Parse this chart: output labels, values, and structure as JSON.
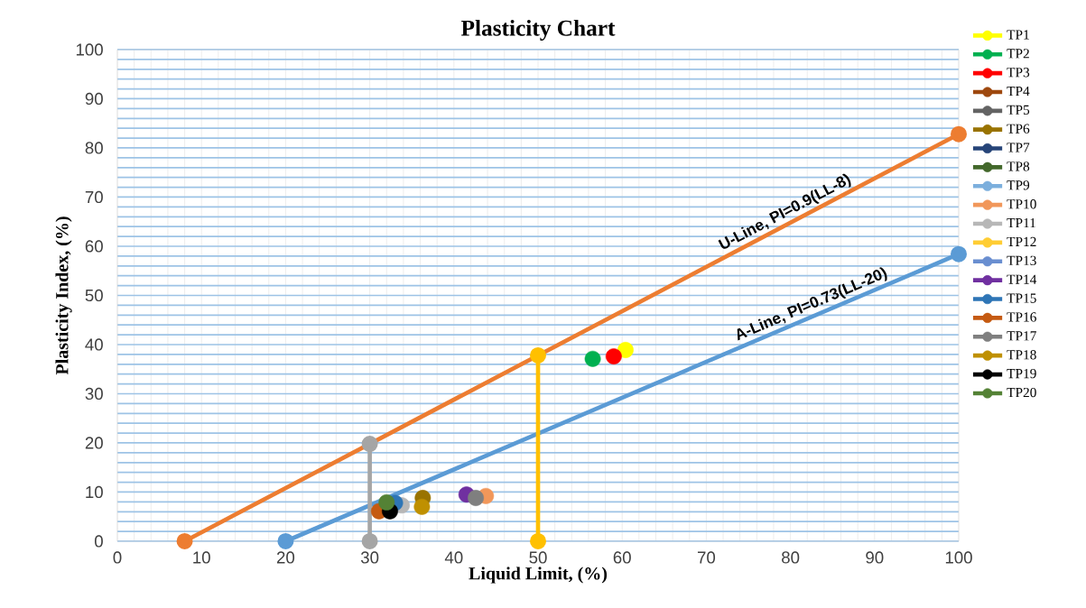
{
  "chart_data": {
    "type": "scatter",
    "title": "Plasticity Chart",
    "xlabel": "Liquid Limit, (%)",
    "ylabel": "Plasticity Index, (%)",
    "xlim": [
      0,
      100
    ],
    "ylim": [
      0,
      100
    ],
    "xticks": [
      0,
      10,
      20,
      30,
      40,
      50,
      60,
      70,
      80,
      90,
      100
    ],
    "yticks": [
      0,
      10,
      20,
      30,
      40,
      50,
      60,
      70,
      80,
      90,
      100
    ],
    "grid": true,
    "legend": "right",
    "marker": "circle",
    "annotations": [
      {
        "text": "U-Line,      PI=0.9(LL-8)",
        "x": 80,
        "y": 64.8
      },
      {
        "text": "A-Line,  PI=0.73(LL-20)",
        "x": 83,
        "y": 46
      }
    ],
    "series": [
      {
        "name": "TP1",
        "color": "#ffff00",
        "x": [
          60.4
        ],
        "values": [
          38.9
        ]
      },
      {
        "name": "TP2",
        "color": "#00b050",
        "x": [
          56.5
        ],
        "values": [
          37.1
        ]
      },
      {
        "name": "TP3",
        "color": "#ff0000",
        "x": [
          59.0
        ],
        "values": [
          37.6
        ]
      },
      {
        "name": "TP4",
        "color": "#9e480e",
        "x": [
          null
        ],
        "values": [
          null
        ]
      },
      {
        "name": "TP5",
        "color": "#636363",
        "x": [
          null
        ],
        "values": [
          null
        ]
      },
      {
        "name": "TP6",
        "color": "#997300",
        "x": [
          36.3
        ],
        "values": [
          8.8
        ]
      },
      {
        "name": "TP7",
        "color": "#264478",
        "x": [
          null
        ],
        "values": [
          null
        ]
      },
      {
        "name": "TP8",
        "color": "#43682b",
        "x": [
          null
        ],
        "values": [
          null
        ]
      },
      {
        "name": "TP9",
        "color": "#7cafdd",
        "x": [
          null
        ],
        "values": [
          null
        ]
      },
      {
        "name": "TP10",
        "color": "#f1975a",
        "x": [
          43.8
        ],
        "values": [
          9.2
        ]
      },
      {
        "name": "TP11",
        "color": "#b7b7b7",
        "x": [
          33.8
        ],
        "values": [
          7.3
        ]
      },
      {
        "name": "TP12",
        "color": "#ffcd33",
        "x": [
          null
        ],
        "values": [
          null
        ]
      },
      {
        "name": "TP13",
        "color": "#698ed0",
        "x": [
          null
        ],
        "values": [
          null
        ]
      },
      {
        "name": "TP14",
        "color": "#7030a0",
        "x": [
          41.5
        ],
        "values": [
          9.5
        ]
      },
      {
        "name": "TP15",
        "color": "#2e75b6",
        "x": [
          33.0
        ],
        "values": [
          7.8
        ]
      },
      {
        "name": "TP16",
        "color": "#c55a11",
        "x": [
          31.1
        ],
        "values": [
          6.1
        ]
      },
      {
        "name": "TP17",
        "color": "#7f7f7f",
        "x": [
          42.6
        ],
        "values": [
          8.8
        ]
      },
      {
        "name": "TP18",
        "color": "#bf9000",
        "x": [
          36.2
        ],
        "values": [
          7.0
        ]
      },
      {
        "name": "TP19",
        "color": "#000000",
        "x": [
          32.4
        ],
        "values": [
          6.1
        ]
      },
      {
        "name": "TP20",
        "color": "#548235",
        "x": [
          32.0
        ],
        "values": [
          7.9
        ]
      },
      {
        "type": "line",
        "color": "#ed7d31",
        "x": [
          8,
          100
        ],
        "values": [
          0,
          82.8
        ]
      },
      {
        "type": "line",
        "color": "#5b9bd5",
        "x": [
          20,
          100
        ],
        "values": [
          0,
          58.4
        ]
      },
      {
        "type": "line",
        "color": "#a5a5a5",
        "x": [
          30,
          30
        ],
        "values": [
          0,
          19.8
        ]
      },
      {
        "type": "line",
        "color": "#ffc000",
        "x": [
          50,
          50
        ],
        "values": [
          0,
          37.8
        ]
      }
    ]
  }
}
